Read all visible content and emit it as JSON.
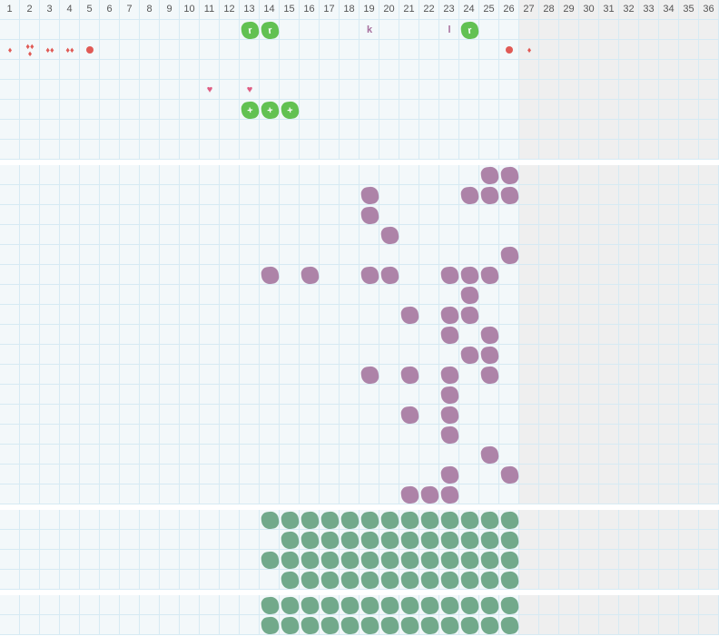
{
  "columns": [
    "1",
    "2",
    "3",
    "4",
    "5",
    "6",
    "7",
    "8",
    "9",
    "10",
    "11",
    "12",
    "13",
    "14",
    "15",
    "16",
    "17",
    "18",
    "19",
    "20",
    "21",
    "22",
    "23",
    "24",
    "25",
    "26",
    "27",
    "28",
    "29",
    "30",
    "31",
    "32",
    "33",
    "34",
    "35",
    "36"
  ],
  "active_columns": 26,
  "colors": {
    "green": "#62c152",
    "purple": "#ad83a8",
    "teal": "#72a98b",
    "red": "#e05a55",
    "heart": "#de5c82",
    "grid": "#d6eaf3",
    "active_bg": "#f3f8fa",
    "inactive_bg": "#efefef"
  },
  "sections": [
    {
      "name": "section-1",
      "rows": 7,
      "items": [
        {
          "row": 1,
          "col": 13,
          "type": "green-blob",
          "label": "r"
        },
        {
          "row": 1,
          "col": 14,
          "type": "green-blob",
          "label": "r"
        },
        {
          "row": 1,
          "col": 19,
          "type": "letter",
          "label": "k"
        },
        {
          "row": 1,
          "col": 23,
          "type": "letter",
          "label": "l"
        },
        {
          "row": 1,
          "col": 24,
          "type": "green-blob",
          "label": "r"
        },
        {
          "row": 2,
          "col": 1,
          "type": "drops",
          "count": 1
        },
        {
          "row": 2,
          "col": 2,
          "type": "drops",
          "count": 3
        },
        {
          "row": 2,
          "col": 3,
          "type": "drops",
          "count": 2
        },
        {
          "row": 2,
          "col": 4,
          "type": "drops",
          "count": 2
        },
        {
          "row": 2,
          "col": 5,
          "type": "circle"
        },
        {
          "row": 2,
          "col": 26,
          "type": "circle"
        },
        {
          "row": 2,
          "col": 27,
          "type": "drops",
          "count": 1
        },
        {
          "row": 4,
          "col": 11,
          "type": "heart"
        },
        {
          "row": 4,
          "col": 13,
          "type": "heart"
        },
        {
          "row": 5,
          "col": 13,
          "type": "green-blob",
          "label": "+"
        },
        {
          "row": 5,
          "col": 14,
          "type": "green-blob",
          "label": "+"
        },
        {
          "row": 5,
          "col": 15,
          "type": "green-blob",
          "label": "+"
        }
      ]
    },
    {
      "name": "section-2",
      "rows": 17,
      "blob": "purple",
      "cells": [
        [
          1,
          25
        ],
        [
          1,
          26
        ],
        [
          2,
          19
        ],
        [
          2,
          24
        ],
        [
          2,
          25
        ],
        [
          2,
          26
        ],
        [
          3,
          19
        ],
        [
          4,
          20
        ],
        [
          5,
          26
        ],
        [
          6,
          14
        ],
        [
          6,
          16
        ],
        [
          6,
          19
        ],
        [
          6,
          20
        ],
        [
          6,
          23
        ],
        [
          6,
          24
        ],
        [
          6,
          25
        ],
        [
          7,
          24
        ],
        [
          8,
          21
        ],
        [
          8,
          23
        ],
        [
          8,
          24
        ],
        [
          9,
          23
        ],
        [
          9,
          25
        ],
        [
          10,
          24
        ],
        [
          10,
          25
        ],
        [
          11,
          19
        ],
        [
          11,
          21
        ],
        [
          11,
          23
        ],
        [
          11,
          25
        ],
        [
          12,
          23
        ],
        [
          13,
          21
        ],
        [
          13,
          23
        ],
        [
          14,
          23
        ],
        [
          15,
          25
        ],
        [
          16,
          23
        ],
        [
          16,
          26
        ],
        [
          17,
          21
        ],
        [
          17,
          22
        ],
        [
          17,
          23
        ]
      ]
    },
    {
      "name": "section-3",
      "rows": 4,
      "blob": "teal",
      "row_ranges": [
        [
          1,
          14,
          26
        ],
        [
          2,
          15,
          26
        ],
        [
          3,
          14,
          26
        ],
        [
          4,
          15,
          26
        ]
      ]
    },
    {
      "name": "section-4",
      "rows": 2,
      "blob": "teal",
      "row_ranges": [
        [
          1,
          14,
          26
        ],
        [
          2,
          14,
          26
        ]
      ]
    }
  ]
}
